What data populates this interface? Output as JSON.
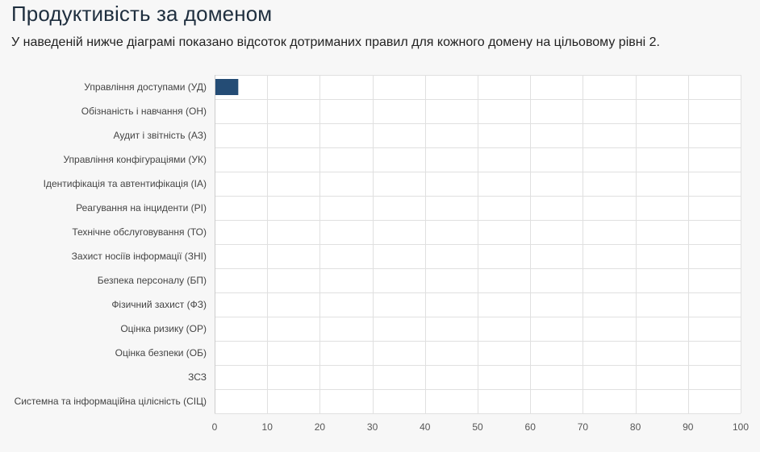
{
  "header": {
    "title": "Продуктивість за доменом",
    "subtitle": "У наведеній нижче діаграмі показано відсоток дотриманих правил для кожного домену на цільовому рівні 2."
  },
  "colors": {
    "bar": "#244c75",
    "grid": "#e0e0e0",
    "plot_background": "#ffffff",
    "axis": "#cccccc"
  },
  "chart_data": {
    "type": "bar",
    "orientation": "horizontal",
    "categories": [
      "Управління доступами (УД)",
      "Обізнаність і навчання (ОН)",
      "Аудит і звітність (АЗ)",
      "Управління конфігураціями (УК)",
      "Ідентифікація та автентифікація (ІА)",
      "Реагування на інциденти (РІ)",
      "Технічне обслуговування (ТО)",
      "Захист носіїв інформації (ЗНІ)",
      "Безпека персоналу (БП)",
      "Фізичний захист (ФЗ)",
      "Оцінка ризику (ОР)",
      "Оцінка безпеки (ОБ)",
      "ЗСЗ",
      "Системна та інформаційна цілісність (СІЦ)"
    ],
    "values": [
      4.5,
      0,
      0,
      0,
      0,
      0,
      0,
      0,
      0,
      0,
      0,
      0,
      0,
      0
    ],
    "xlim": [
      0,
      100
    ],
    "xticks": [
      "0",
      "10",
      "20",
      "30",
      "40",
      "50",
      "60",
      "70",
      "80",
      "90",
      "100"
    ],
    "grid": true,
    "legend": "none"
  }
}
